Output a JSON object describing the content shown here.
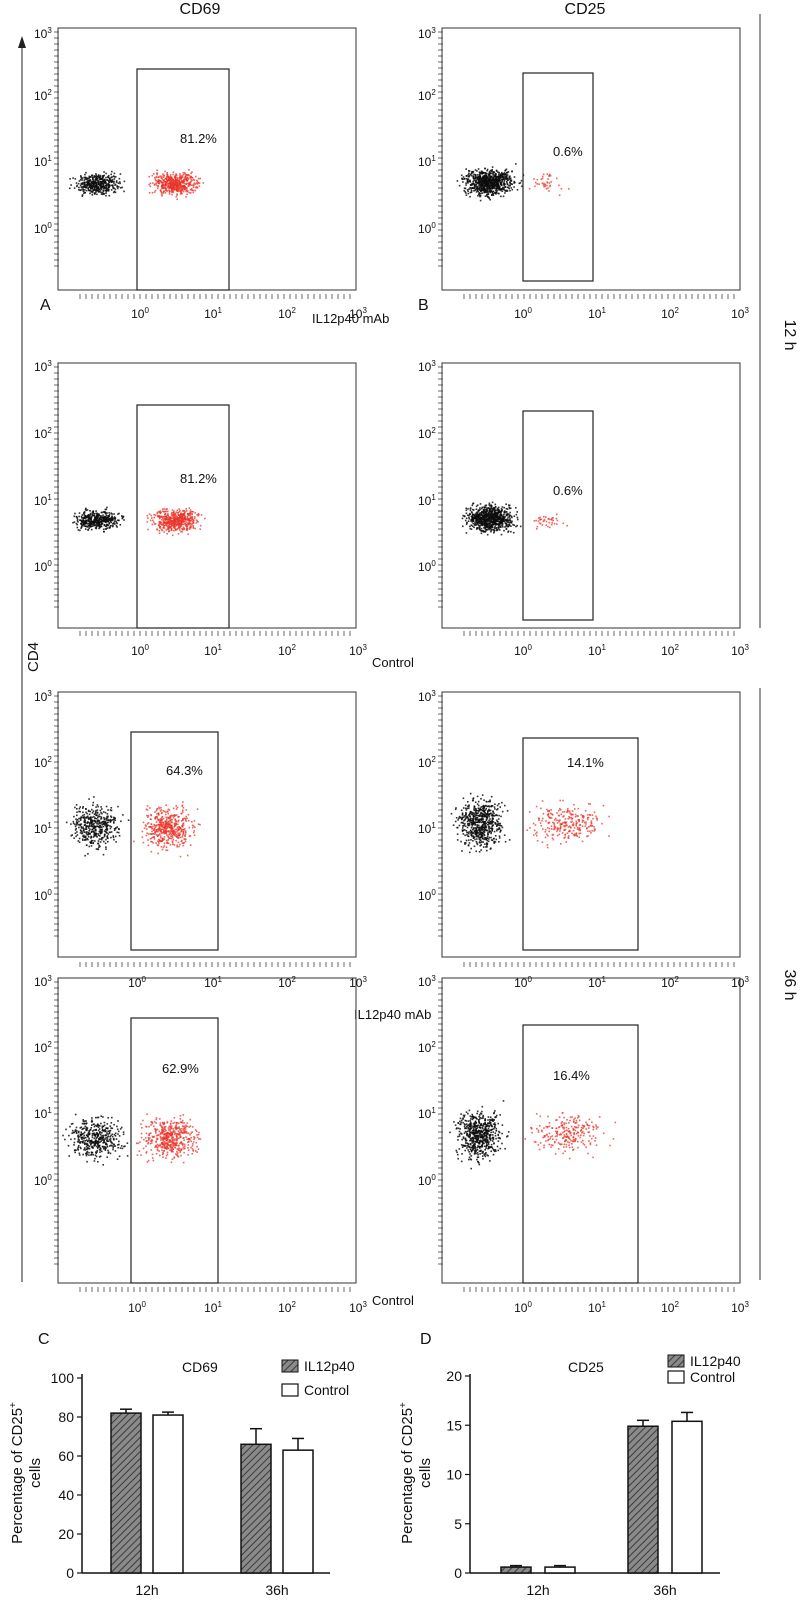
{
  "figure": {
    "column_titles": [
      "CD69",
      "CD25"
    ],
    "y_axis_marker": "CD4",
    "time_labels": [
      "12 h",
      "36 h"
    ],
    "panel_letters": {
      "A": "A",
      "B": "B",
      "C": "C",
      "D": "D"
    },
    "row_labels": [
      "IL12p40 mAb",
      "Control",
      "IL12p40 mAb",
      "Control"
    ],
    "log_axis": {
      "base": "10",
      "ticks": [
        {
          "base": "10",
          "exp": "0"
        },
        {
          "base": "10",
          "exp": "1"
        },
        {
          "base": "10",
          "exp": "2"
        },
        {
          "base": "10",
          "exp": "3"
        }
      ]
    }
  },
  "chart_data": [
    {
      "type": "scatter",
      "title": "CD69",
      "description": "Flow cytometry dot plots, CD4 (y, log) vs CD69 (x, log); gate percentage shown",
      "xlim": [
        0.03,
        1000
      ],
      "ylim": [
        0.03,
        1000
      ],
      "panels": [
        {
          "time": "12 h",
          "condition": "IL12p40 mAb",
          "gate_percent": "81.2%",
          "gate_x": [
            1,
            15
          ],
          "gate_y": [
            0.05,
            200
          ]
        },
        {
          "time": "12 h",
          "condition": "Control",
          "gate_percent": "81.2%",
          "gate_x": [
            1,
            15
          ],
          "gate_y": [
            0.05,
            200
          ]
        },
        {
          "time": "36 h",
          "condition": "IL12p40 mAb",
          "gate_percent": "64.3%",
          "gate_x": [
            0.8,
            15
          ],
          "gate_y": [
            0.05,
            200
          ]
        },
        {
          "time": "36 h",
          "condition": "Control",
          "gate_percent": "62.9%",
          "gate_x": [
            0.8,
            15
          ],
          "gate_y": [
            0.05,
            200
          ]
        }
      ]
    },
    {
      "type": "scatter",
      "title": "CD25",
      "description": "Flow cytometry dot plots, CD4 (y, log) vs CD25 (x, log); gate percentage shown",
      "xlim": [
        0.03,
        1000
      ],
      "ylim": [
        0.03,
        1000
      ],
      "panels": [
        {
          "time": "12 h",
          "condition": "IL12p40 mAb",
          "gate_percent": "0.6%",
          "gate_x": [
            1,
            8
          ],
          "gate_y": [
            0.05,
            150
          ]
        },
        {
          "time": "12 h",
          "condition": "Control",
          "gate_percent": "0.6%",
          "gate_x": [
            1,
            8
          ],
          "gate_y": [
            0.05,
            150
          ]
        },
        {
          "time": "36 h",
          "condition": "IL12p40 mAb",
          "gate_percent": "14.1%",
          "gate_x": [
            1,
            40
          ],
          "gate_y": [
            0.05,
            200
          ]
        },
        {
          "time": "36 h",
          "condition": "Control",
          "gate_percent": "16.4%",
          "gate_x": [
            1,
            40
          ],
          "gate_y": [
            0.05,
            200
          ]
        }
      ]
    },
    {
      "type": "bar",
      "panel": "C",
      "title": "CD69",
      "ylabel_line1": "Percentage of CD25",
      "ylabel_sup": "+",
      "ylabel_line2": "cells",
      "categories": [
        "12h",
        "36h"
      ],
      "ylim": [
        0,
        100
      ],
      "yticks": [
        0,
        20,
        40,
        60,
        80,
        100
      ],
      "series": [
        {
          "name": "IL12p40",
          "values": [
            82,
            66
          ],
          "errors": [
            2,
            8
          ],
          "fill": "hatched"
        },
        {
          "name": "Control",
          "values": [
            81,
            63
          ],
          "errors": [
            1.5,
            6
          ],
          "fill": "white"
        }
      ]
    },
    {
      "type": "bar",
      "panel": "D",
      "title": "CD25",
      "ylabel_line1": "Percentage of CD25",
      "ylabel_sup": "+",
      "ylabel_line2": "cells",
      "categories": [
        "12h",
        "36h"
      ],
      "ylim": [
        0,
        20
      ],
      "yticks": [
        0,
        5,
        10,
        15,
        20
      ],
      "series": [
        {
          "name": "IL12p40",
          "values": [
            0.6,
            14.9
          ],
          "errors": [
            0.15,
            0.6
          ],
          "fill": "hatched"
        },
        {
          "name": "Control",
          "values": [
            0.6,
            15.4
          ],
          "errors": [
            0.15,
            0.9
          ],
          "fill": "white"
        }
      ]
    }
  ]
}
